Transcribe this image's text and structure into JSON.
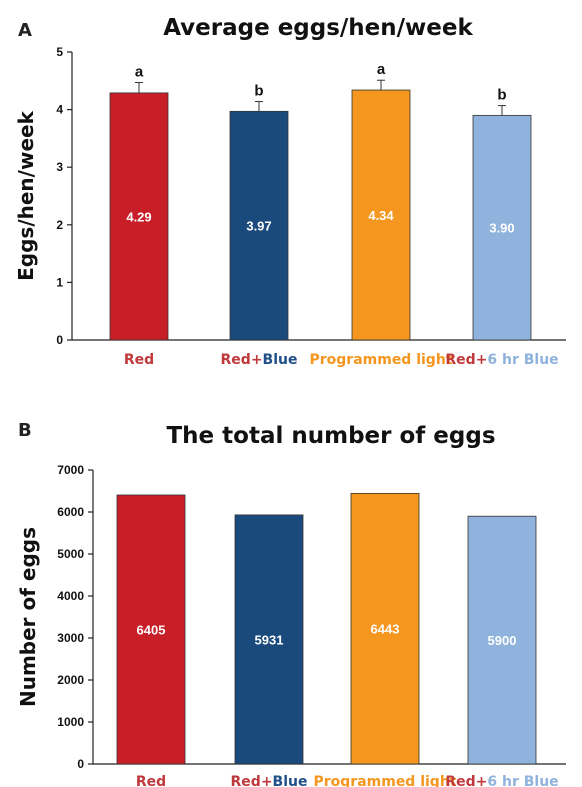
{
  "panels": [
    {
      "letter": "A"
    },
    {
      "letter": "B"
    }
  ],
  "colors": {
    "red": "#c81e28",
    "blue": "#1a4a7c",
    "orange": "#f5961e",
    "lightblue": "#8fb3dc",
    "red_text": "#c0393c",
    "blue_text": "#1f4e88",
    "orange_text": "#f5961e",
    "lightblue_text": "#8fb3dc"
  },
  "chart_data": [
    {
      "type": "bar",
      "title": "Average eggs/hen/week",
      "ylabel": "Eggs/hen/week",
      "xlabel": "",
      "ylim": [
        0,
        5
      ],
      "yticks": [
        "0",
        "1",
        "2",
        "3",
        "4",
        "5"
      ],
      "categories": [
        {
          "parts": [
            {
              "text": "Red",
              "color": "red_text"
            }
          ]
        },
        {
          "parts": [
            {
              "text": "Red",
              "color": "red_text"
            },
            {
              "text": "+",
              "color": "red_text"
            },
            {
              "text": "Blue",
              "color": "blue_text"
            }
          ]
        },
        {
          "parts": [
            {
              "text": "Programmed light",
              "color": "orange_text"
            }
          ]
        },
        {
          "parts": [
            {
              "text": "Red",
              "color": "red_text"
            },
            {
              "text": "+",
              "color": "red_text"
            },
            {
              "text": "6 hr Blue",
              "color": "lightblue_text"
            }
          ]
        }
      ],
      "values": [
        4.29,
        3.97,
        4.34,
        3.9
      ],
      "value_labels": [
        "4.29",
        "3.97",
        "4.34",
        "3.90"
      ],
      "errors": [
        0.18,
        0.17,
        0.17,
        0.17
      ],
      "significance": [
        "a",
        "b",
        "a",
        "b"
      ],
      "bar_colors": [
        "red",
        "blue",
        "orange",
        "lightblue"
      ],
      "grid": false,
      "legend": "none"
    },
    {
      "type": "bar",
      "title": "The total number of eggs",
      "ylabel": "Number of eggs",
      "xlabel": "",
      "ylim": [
        0,
        7000
      ],
      "yticks": [
        "0",
        "1000",
        "2000",
        "3000",
        "4000",
        "5000",
        "6000",
        "7000"
      ],
      "categories": [
        {
          "parts": [
            {
              "text": "Red",
              "color": "red_text"
            }
          ]
        },
        {
          "parts": [
            {
              "text": "Red",
              "color": "red_text"
            },
            {
              "text": "+",
              "color": "red_text"
            },
            {
              "text": "Blue",
              "color": "blue_text"
            }
          ]
        },
        {
          "parts": [
            {
              "text": "Programmed light",
              "color": "orange_text"
            }
          ]
        },
        {
          "parts": [
            {
              "text": "Red",
              "color": "red_text"
            },
            {
              "text": "+",
              "color": "red_text"
            },
            {
              "text": "6 hr Blue",
              "color": "lightblue_text"
            }
          ]
        }
      ],
      "values": [
        6405,
        5931,
        6443,
        5900
      ],
      "value_labels": [
        "6405",
        "5931",
        "6443",
        "5900"
      ],
      "bar_colors": [
        "red",
        "blue",
        "orange",
        "lightblue"
      ],
      "grid": false,
      "legend": "none"
    }
  ]
}
